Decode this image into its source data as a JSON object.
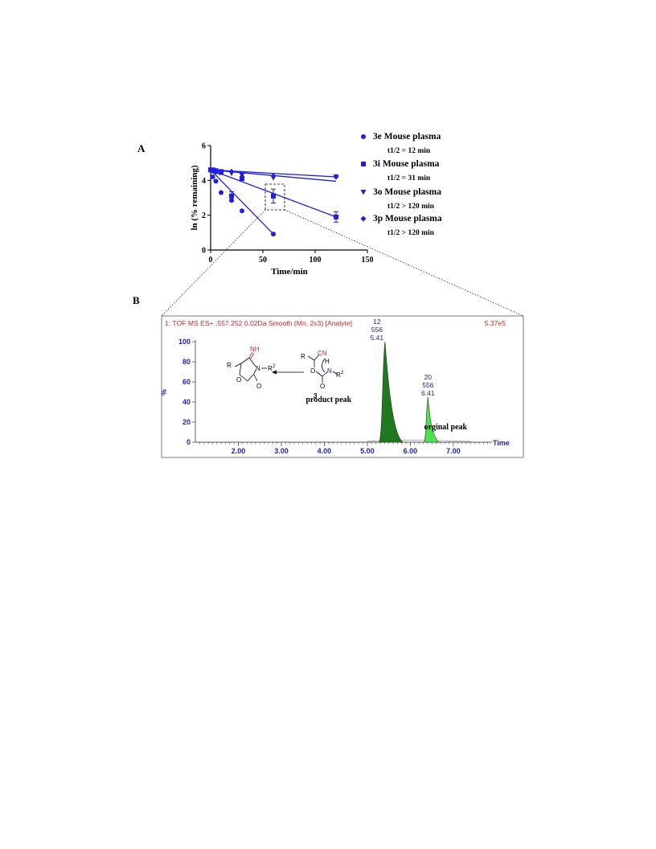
{
  "panel_a_label": "A",
  "panel_b_label": "B",
  "chart_data": [
    {
      "type": "scatter",
      "xlabel": "Time/min",
      "ylabel": "ln (% remaining)",
      "xlim": [
        0,
        150
      ],
      "ylim": [
        0,
        6
      ],
      "x_ticks": [
        "0",
        "50",
        "100",
        "150"
      ],
      "y_ticks": [
        "0",
        "2",
        "4",
        "6"
      ],
      "legend_position": "right",
      "series": [
        {
          "name": "3e Mouse plasma",
          "note": "t1/2 = 12 min",
          "marker": "circle",
          "x": [
            0,
            2,
            5,
            10,
            20,
            30,
            60
          ],
          "y": [
            4.6,
            4.2,
            3.95,
            3.3,
            2.85,
            2.25,
            0.92
          ],
          "err": [
            0,
            0,
            0,
            0,
            0,
            0,
            0
          ],
          "fit": [
            [
              0,
              4.6
            ],
            [
              60,
              0.92
            ]
          ]
        },
        {
          "name": "3i Mouse plasma",
          "note": "t1/2 = 31 min",
          "marker": "square",
          "x": [
            0,
            2,
            5,
            10,
            20,
            30,
            60,
            120
          ],
          "y": [
            4.6,
            4.55,
            4.5,
            4.45,
            3.1,
            4.1,
            3.1,
            1.9
          ],
          "err": [
            0,
            0,
            0,
            0,
            0.25,
            0,
            0.4,
            0.3
          ],
          "fit": [
            [
              0,
              4.6
            ],
            [
              120,
              1.9
            ]
          ]
        },
        {
          "name": "3o Mouse plasma",
          "note": "t1/2 > 120 min",
          "marker": "triangle-down",
          "x": [
            0,
            2,
            5,
            10,
            20,
            30,
            60,
            120
          ],
          "y": [
            4.6,
            4.6,
            4.55,
            4.5,
            4.4,
            4.3,
            4.15,
            4.2
          ],
          "err": [
            0,
            0,
            0,
            0,
            0,
            0,
            0,
            0
          ],
          "fit": [
            [
              0,
              4.6
            ],
            [
              120,
              3.95
            ]
          ]
        },
        {
          "name": "3p Mouse plasma",
          "note": "t1/2 > 120 min",
          "marker": "diamond",
          "x": [
            0,
            2,
            5,
            10,
            20,
            30,
            60,
            120
          ],
          "y": [
            4.6,
            4.6,
            4.55,
            4.5,
            4.5,
            4.2,
            4.25,
            4.2
          ],
          "err": [
            0,
            0,
            0,
            0,
            0,
            0,
            0,
            0
          ],
          "fit": [
            [
              0,
              4.6
            ],
            [
              120,
              4.2
            ]
          ]
        }
      ]
    },
    {
      "type": "area",
      "header": "1: TOF MS ES+ :557.252 0.02Da Smooth (Mn, 2x3) [Analyte]",
      "intensity": "5.37e5",
      "xlabel": "Time",
      "ylabel": "%",
      "xlim": [
        1.0,
        7.9
      ],
      "ylim": [
        0,
        100
      ],
      "x_ticks": [
        "2.00",
        "3.00",
        "4.00",
        "5.00",
        "6.00",
        "7.00"
      ],
      "y_ticks": [
        "0",
        "20",
        "40",
        "60",
        "80",
        "100"
      ],
      "peaks": [
        {
          "label": "product peak",
          "scan": "12",
          "mz": "556",
          "rt": "5.41",
          "time": 5.41,
          "height": 100,
          "color": "#1f7a1f"
        },
        {
          "label": "orginal peak",
          "scan": "20",
          "mz": "556",
          "rt": "6.41",
          "time": 6.41,
          "height": 45,
          "color": "#4fe24f"
        }
      ],
      "scheme": {
        "left_imine": "NH",
        "r": "R",
        "n": "N",
        "o": "O",
        "r2": "R",
        "sup2": "2",
        "right_cn": "CN",
        "right_h": "H",
        "compound_number": "3"
      }
    }
  ]
}
